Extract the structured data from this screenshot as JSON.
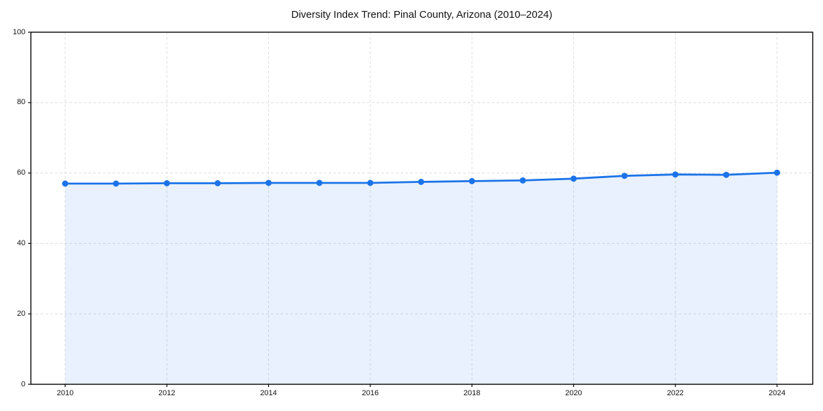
{
  "chart_data": {
    "type": "area",
    "title": "Diversity Index Trend: Pinal County, Arizona (2010–2024)",
    "series_name": "Diversity Index",
    "x": [
      2010,
      2011,
      2012,
      2013,
      2014,
      2015,
      2016,
      2017,
      2018,
      2019,
      2020,
      2021,
      2022,
      2023,
      2024
    ],
    "values": [
      57.0,
      57.0,
      57.1,
      57.1,
      57.2,
      57.2,
      57.2,
      57.5,
      57.7,
      57.9,
      58.4,
      59.2,
      59.6,
      59.5,
      60.1
    ],
    "xlabel": "",
    "ylabel": "",
    "xlim": [
      2009.3,
      2024.7
    ],
    "ylim": [
      0,
      100
    ],
    "yticks": [
      0,
      20,
      40,
      60,
      80,
      100
    ],
    "xticks": [
      2010,
      2012,
      2014,
      2016,
      2018,
      2020,
      2022,
      2024
    ],
    "grid": true,
    "grid_style": "dashed",
    "legend_position": "none",
    "marker": "circle",
    "line_color": "#1a73e8",
    "fill_color": "rgba(26,115,232,0.10)",
    "grid_color": "#dedede",
    "axis_color": "#000000",
    "text_color": "#111111"
  }
}
